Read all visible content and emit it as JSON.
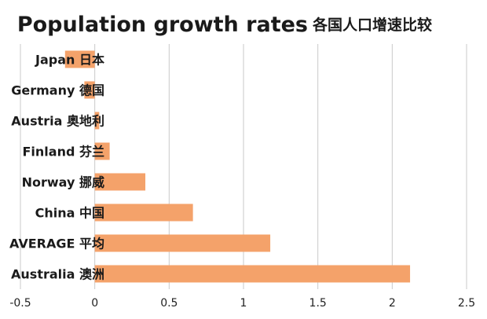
{
  "chart_data": {
    "type": "bar",
    "orientation": "horizontal",
    "title": "Population growth rates",
    "title_cn": "各国人口增速比较",
    "categories": [
      "Japan 日本",
      "Germany 德国",
      "Austria 奥地利",
      "Finland 芬兰",
      "Norway 挪威",
      "China 中国",
      "AVERAGE 平均",
      "Australia 澳洲"
    ],
    "values": [
      -0.2,
      -0.07,
      0.03,
      0.1,
      0.34,
      0.66,
      1.18,
      2.12
    ],
    "xlim": [
      -0.5,
      2.5
    ],
    "xticks": [
      "-0.5",
      "0",
      "0.5",
      "1",
      "1.5",
      "2",
      "2.5"
    ],
    "xlabel": "",
    "ylabel": "",
    "grid": "vertical",
    "bar_color": "#f4a26a",
    "grid_color": "#c9c9c9"
  }
}
